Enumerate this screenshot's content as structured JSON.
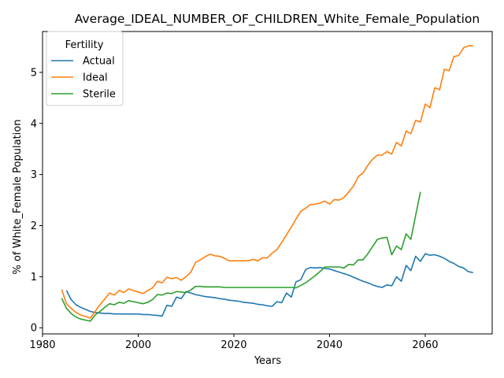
{
  "chart_data": {
    "type": "line",
    "title": "Average_IDEAL_NUMBER_OF_CHILDREN_White_Female_Population",
    "xlabel": "Years",
    "ylabel": "% of White_Female Population",
    "xlim": [
      1980,
      2074
    ],
    "ylim": [
      -0.12,
      5.8
    ],
    "xticks": [
      1980,
      2000,
      2020,
      2040,
      2060
    ],
    "yticks": [
      0,
      1,
      2,
      3,
      4,
      5
    ],
    "grid": false,
    "legend": {
      "title": "Fertility",
      "placement": "top-left"
    },
    "series": [
      {
        "name": "Actual",
        "color": "#1f77b4",
        "x": [
          1985,
          1986,
          1987,
          1988,
          1989,
          1990,
          1991,
          1992,
          1993,
          1994,
          1995,
          1996,
          1997,
          1998,
          1999,
          2000,
          2001,
          2002,
          2003,
          2004,
          2005,
          2006,
          2007,
          2008,
          2009,
          2010,
          2011,
          2012,
          2013,
          2014,
          2015,
          2016,
          2017,
          2018,
          2019,
          2020,
          2021,
          2022,
          2023,
          2024,
          2025,
          2026,
          2027,
          2028,
          2029,
          2030,
          2031,
          2032,
          2033,
          2034,
          2035,
          2036,
          2037,
          2038,
          2039,
          2040,
          2041,
          2042,
          2043,
          2044,
          2045,
          2046,
          2047,
          2048,
          2049,
          2050,
          2051,
          2052,
          2053,
          2054,
          2055,
          2056,
          2057,
          2058,
          2059,
          2060,
          2061,
          2062,
          2063,
          2064,
          2065,
          2066,
          2067,
          2068,
          2069,
          2070
        ],
        "values": [
          0.73,
          0.55,
          0.45,
          0.4,
          0.36,
          0.32,
          0.3,
          0.29,
          0.28,
          0.28,
          0.27,
          0.27,
          0.27,
          0.27,
          0.27,
          0.27,
          0.26,
          0.26,
          0.25,
          0.24,
          0.23,
          0.44,
          0.42,
          0.6,
          0.57,
          0.71,
          0.68,
          0.65,
          0.63,
          0.61,
          0.6,
          0.59,
          0.57,
          0.56,
          0.54,
          0.53,
          0.52,
          0.5,
          0.49,
          0.48,
          0.46,
          0.45,
          0.43,
          0.42,
          0.51,
          0.49,
          0.68,
          0.6,
          0.9,
          0.94,
          1.14,
          1.18,
          1.17,
          1.18,
          1.16,
          1.15,
          1.12,
          1.09,
          1.06,
          1.03,
          0.99,
          0.95,
          0.91,
          0.88,
          0.84,
          0.81,
          0.79,
          0.84,
          0.82,
          1.0,
          0.91,
          1.22,
          1.12,
          1.4,
          1.3,
          1.45,
          1.42,
          1.43,
          1.4,
          1.36,
          1.3,
          1.26,
          1.2,
          1.17,
          1.1,
          1.08
        ]
      },
      {
        "name": "Ideal",
        "color": "#ff7f0e",
        "x": [
          1984,
          1985,
          1986,
          1987,
          1988,
          1989,
          1990,
          1991,
          1992,
          1993,
          1994,
          1995,
          1996,
          1997,
          1998,
          1999,
          2000,
          2001,
          2002,
          2003,
          2004,
          2005,
          2006,
          2007,
          2008,
          2009,
          2010,
          2011,
          2012,
          2013,
          2014,
          2015,
          2016,
          2017,
          2018,
          2019,
          2020,
          2021,
          2022,
          2023,
          2024,
          2025,
          2026,
          2027,
          2028,
          2029,
          2030,
          2031,
          2032,
          2033,
          2034,
          2035,
          2036,
          2037,
          2038,
          2039,
          2040,
          2041,
          2042,
          2043,
          2044,
          2045,
          2046,
          2047,
          2048,
          2049,
          2050,
          2051,
          2052,
          2053,
          2054,
          2055,
          2056,
          2057,
          2058,
          2059,
          2060,
          2061,
          2062,
          2063,
          2064,
          2065,
          2066,
          2067,
          2068,
          2069,
          2070
        ],
        "values": [
          0.75,
          0.47,
          0.38,
          0.3,
          0.25,
          0.22,
          0.19,
          0.32,
          0.45,
          0.56,
          0.68,
          0.64,
          0.73,
          0.69,
          0.76,
          0.73,
          0.7,
          0.67,
          0.73,
          0.78,
          0.91,
          0.88,
          0.99,
          0.96,
          0.98,
          0.93,
          1.0,
          1.09,
          1.28,
          1.33,
          1.39,
          1.44,
          1.41,
          1.4,
          1.36,
          1.31,
          1.31,
          1.31,
          1.31,
          1.31,
          1.34,
          1.31,
          1.37,
          1.37,
          1.46,
          1.53,
          1.67,
          1.82,
          1.97,
          2.13,
          2.28,
          2.34,
          2.41,
          2.42,
          2.44,
          2.48,
          2.42,
          2.51,
          2.5,
          2.55,
          2.66,
          2.77,
          2.96,
          3.03,
          3.18,
          3.3,
          3.38,
          3.38,
          3.45,
          3.4,
          3.63,
          3.56,
          3.85,
          3.8,
          4.06,
          4.03,
          4.38,
          4.31,
          4.7,
          4.66,
          5.06,
          5.03,
          5.31,
          5.33,
          5.48,
          5.52,
          5.52
        ]
      },
      {
        "name": "Sterile",
        "color": "#2ca02c",
        "x": [
          1984,
          1985,
          1986,
          1987,
          1988,
          1989,
          1990,
          1991,
          1992,
          1993,
          1994,
          1995,
          1996,
          1997,
          1998,
          1999,
          2000,
          2001,
          2002,
          2003,
          2004,
          2005,
          2006,
          2007,
          2008,
          2009,
          2010,
          2011,
          2012,
          2013,
          2014,
          2015,
          2016,
          2017,
          2018,
          2019,
          2020,
          2021,
          2022,
          2023,
          2024,
          2025,
          2026,
          2027,
          2028,
          2029,
          2030,
          2031,
          2032,
          2033,
          2034,
          2035,
          2036,
          2037,
          2038,
          2039,
          2040,
          2041,
          2042,
          2043,
          2044,
          2045,
          2046,
          2047,
          2048,
          2049,
          2050,
          2051,
          2052,
          2053,
          2054,
          2055,
          2056,
          2057,
          2058,
          2059
        ],
        "values": [
          0.58,
          0.38,
          0.28,
          0.21,
          0.17,
          0.15,
          0.13,
          0.25,
          0.32,
          0.4,
          0.47,
          0.45,
          0.5,
          0.48,
          0.53,
          0.51,
          0.49,
          0.47,
          0.5,
          0.55,
          0.65,
          0.64,
          0.68,
          0.67,
          0.71,
          0.7,
          0.69,
          0.74,
          0.81,
          0.81,
          0.8,
          0.8,
          0.8,
          0.8,
          0.79,
          0.79,
          0.79,
          0.79,
          0.79,
          0.79,
          0.79,
          0.79,
          0.79,
          0.79,
          0.79,
          0.79,
          0.79,
          0.79,
          0.79,
          0.78,
          0.83,
          0.88,
          0.95,
          1.02,
          1.1,
          1.19,
          1.19,
          1.19,
          1.19,
          1.17,
          1.24,
          1.23,
          1.33,
          1.33,
          1.45,
          1.59,
          1.73,
          1.76,
          1.77,
          1.43,
          1.6,
          1.53,
          1.84,
          1.73,
          2.2,
          2.66
        ]
      }
    ]
  }
}
